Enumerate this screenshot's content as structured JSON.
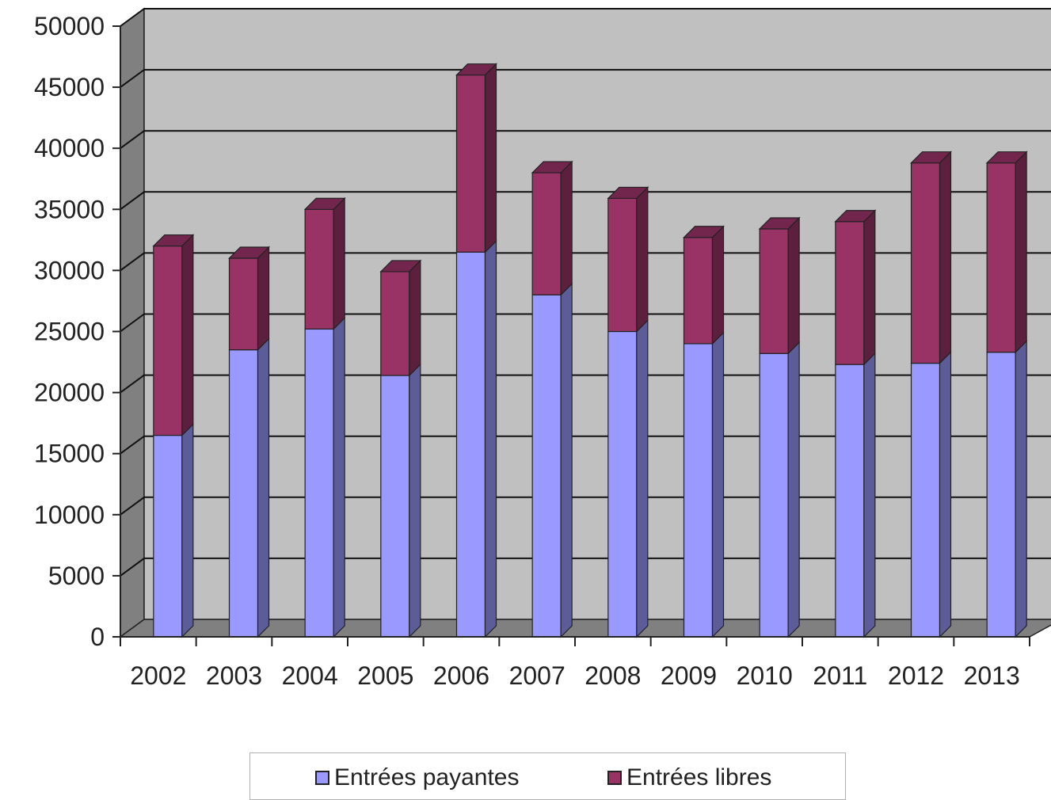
{
  "chart_data": {
    "type": "bar",
    "stacked": true,
    "style": "3d",
    "categories": [
      "2002",
      "2003",
      "2004",
      "2005",
      "2006",
      "2007",
      "2008",
      "2009",
      "2010",
      "2011",
      "2012",
      "2013"
    ],
    "series": [
      {
        "name": "Entrées payantes",
        "color": "#9999ff",
        "values": [
          16500,
          23500,
          25200,
          21400,
          31500,
          28000,
          25000,
          24000,
          23200,
          22300,
          22400,
          23300
        ]
      },
      {
        "name": "Entrées libres",
        "color": "#993366",
        "values": [
          15500,
          7500,
          9800,
          8500,
          14500,
          10000,
          10900,
          8700,
          10200,
          11700,
          16400,
          15500
        ]
      }
    ],
    "ylim": [
      0,
      50000
    ],
    "yticks": [
      0,
      5000,
      10000,
      15000,
      20000,
      25000,
      30000,
      35000,
      40000,
      45000,
      50000
    ],
    "grid": true,
    "legend_position": "bottom",
    "wall_color": "#c0c0c0",
    "floor_color": "#808080"
  }
}
